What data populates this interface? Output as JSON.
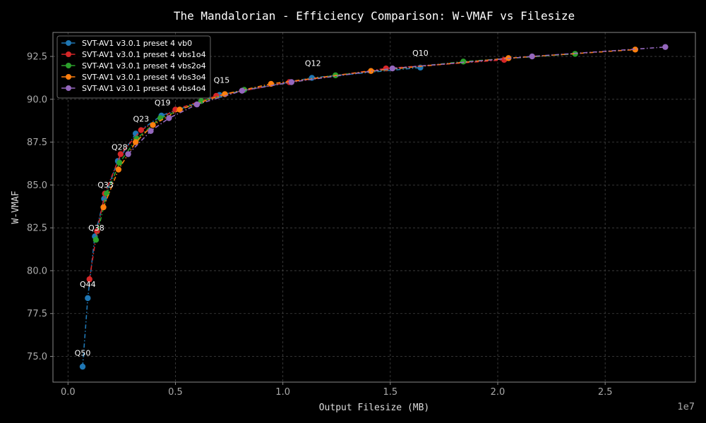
{
  "chart_data": {
    "type": "line",
    "title": "The Mandalorian - Efficiency Comparison: W-VMAF vs Filesize",
    "xlabel": "Output Filesize (MB)",
    "ylabel": "W-VMAF",
    "x_offset_label": "1e7",
    "xlim": [
      -0.07,
      2.92
    ],
    "ylim": [
      73.5,
      93.9
    ],
    "x_ticks": [
      0.0,
      0.5,
      1.0,
      1.5,
      2.0,
      2.5
    ],
    "x_tick_labels": [
      "0.0",
      "0.5",
      "1.0",
      "1.5",
      "2.0",
      "2.5"
    ],
    "y_ticks": [
      75.0,
      77.5,
      80.0,
      82.5,
      85.0,
      87.5,
      90.0,
      92.5
    ],
    "y_tick_labels": [
      "75.0",
      "77.5",
      "80.0",
      "82.5",
      "85.0",
      "87.5",
      "90.0",
      "92.5"
    ],
    "grid": true,
    "legend_position": "top-left",
    "series": [
      {
        "name": "SVT-AV1 v3.0.1 preset 4 vb0",
        "color": "#1f77b4",
        "x": [
          0.068,
          0.092,
          0.125,
          0.168,
          0.232,
          0.315,
          0.435,
          0.705,
          1.135,
          1.64
        ],
        "y": [
          74.4,
          78.4,
          82.0,
          84.2,
          86.4,
          88.0,
          89.05,
          90.25,
          91.25,
          91.85
        ]
      },
      {
        "name": "SVT-AV1 v3.0.1 preset 4 vbs1o4",
        "color": "#d62728",
        "x": [
          0.1,
          0.135,
          0.172,
          0.245,
          0.34,
          0.5,
          0.69,
          1.03,
          1.48,
          2.03
        ],
        "y": [
          79.5,
          82.3,
          84.5,
          86.8,
          88.2,
          89.4,
          90.2,
          91.0,
          91.8,
          92.3
        ]
      },
      {
        "name": "SVT-AV1 v3.0.1 preset 4 vbs2o4",
        "color": "#2ca02c",
        "x": [
          0.13,
          0.18,
          0.24,
          0.32,
          0.43,
          0.62,
          0.82,
          1.245,
          1.84,
          2.36
        ],
        "y": [
          81.8,
          84.5,
          86.3,
          87.7,
          88.9,
          89.9,
          90.55,
          91.4,
          92.2,
          92.65
        ]
      },
      {
        "name": "SVT-AV1 v3.0.1 preset 4 vbs3o4",
        "color": "#ff7f0e",
        "x": [
          0.165,
          0.235,
          0.315,
          0.395,
          0.52,
          0.73,
          0.945,
          1.41,
          2.05,
          2.64
        ],
        "y": [
          83.7,
          85.9,
          87.5,
          88.5,
          89.4,
          90.3,
          90.9,
          91.65,
          92.4,
          92.9
        ]
      },
      {
        "name": "SVT-AV1 v3.0.1 preset 4 vbs4o4",
        "color": "#9467bd",
        "x": [
          0.28,
          0.385,
          0.47,
          0.6,
          0.81,
          1.04,
          1.51,
          2.16,
          2.78
        ],
        "y": [
          86.8,
          88.15,
          88.9,
          89.7,
          90.5,
          91.0,
          91.8,
          92.5,
          93.05
        ]
      }
    ],
    "annotations": [
      {
        "text": "Q50",
        "x": 0.068,
        "y": 75.05
      },
      {
        "text": "Q44",
        "x": 0.092,
        "y": 79.05
      },
      {
        "text": "Q38",
        "x": 0.132,
        "y": 82.35
      },
      {
        "text": "Q33",
        "x": 0.175,
        "y": 84.85
      },
      {
        "text": "Q28",
        "x": 0.24,
        "y": 87.05
      },
      {
        "text": "Q23",
        "x": 0.34,
        "y": 88.7
      },
      {
        "text": "Q19",
        "x": 0.44,
        "y": 89.65
      },
      {
        "text": "Q15",
        "x": 0.715,
        "y": 90.95
      },
      {
        "text": "Q12",
        "x": 1.14,
        "y": 91.95
      },
      {
        "text": "Q10",
        "x": 1.64,
        "y": 92.55
      }
    ]
  }
}
